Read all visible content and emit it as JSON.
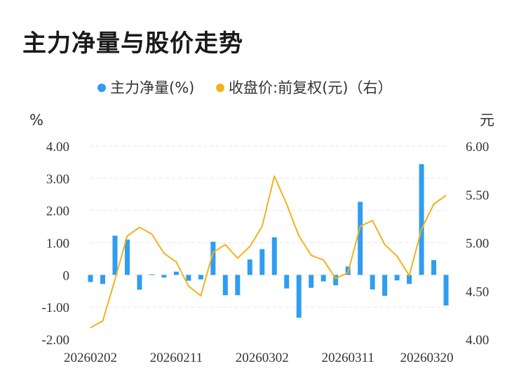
{
  "title": "主力净量与股价走势",
  "colors": {
    "bar": "#2f9df0",
    "line": "#f2b21b",
    "grid": "#e6e6e6",
    "text": "#333333"
  },
  "chart_data": {
    "type": "bar+line",
    "legend": [
      {
        "name": "主力净量(%)",
        "color": "#2f9df0"
      },
      {
        "name": "收盘价:前复权(元)（右）",
        "color": "#f2b21b"
      }
    ],
    "left_axis": {
      "unit": "%",
      "range": [
        -2,
        4
      ],
      "ticks": [
        "4.00",
        "3.00",
        "2.00",
        "1.00",
        "0",
        "-1.00",
        "-2.00"
      ],
      "tick_values": [
        4,
        3,
        2,
        1,
        0,
        -1,
        -2
      ]
    },
    "right_axis": {
      "unit": "元",
      "range": [
        4.0,
        6.0
      ],
      "ticks": [
        "6.00",
        "5.50",
        "5.00",
        "4.50",
        "4.00"
      ],
      "tick_values": [
        6.0,
        5.5,
        5.0,
        4.5,
        4.0
      ]
    },
    "x_labels": [
      {
        "index": 0,
        "label": "20260202"
      },
      {
        "index": 7,
        "label": "20260211"
      },
      {
        "index": 14,
        "label": "20260302"
      },
      {
        "index": 21,
        "label": "20260311"
      },
      {
        "index": 28,
        "label": "20260320"
      }
    ],
    "series": [
      {
        "name": "主力净量(%)",
        "kind": "bar",
        "values": [
          -0.22,
          -0.28,
          1.22,
          1.1,
          -0.46,
          0.02,
          -0.08,
          0.1,
          -0.18,
          -0.14,
          1.03,
          -0.63,
          -0.63,
          0.48,
          0.8,
          1.17,
          -0.42,
          -1.33,
          -0.4,
          -0.2,
          -0.32,
          0.26,
          2.27,
          -0.45,
          -0.65,
          -0.17,
          -0.28,
          3.44,
          0.46,
          -0.95
        ]
      },
      {
        "name": "收盘价:前复权(元)（右）",
        "kind": "line",
        "values": [
          4.12,
          4.19,
          4.62,
          5.07,
          5.16,
          5.09,
          4.89,
          4.8,
          4.55,
          4.45,
          4.9,
          4.98,
          4.84,
          4.96,
          5.17,
          5.69,
          5.4,
          5.07,
          4.87,
          4.82,
          4.63,
          4.69,
          5.17,
          5.23,
          4.98,
          4.86,
          4.66,
          5.14,
          5.4,
          5.49
        ]
      }
    ]
  }
}
